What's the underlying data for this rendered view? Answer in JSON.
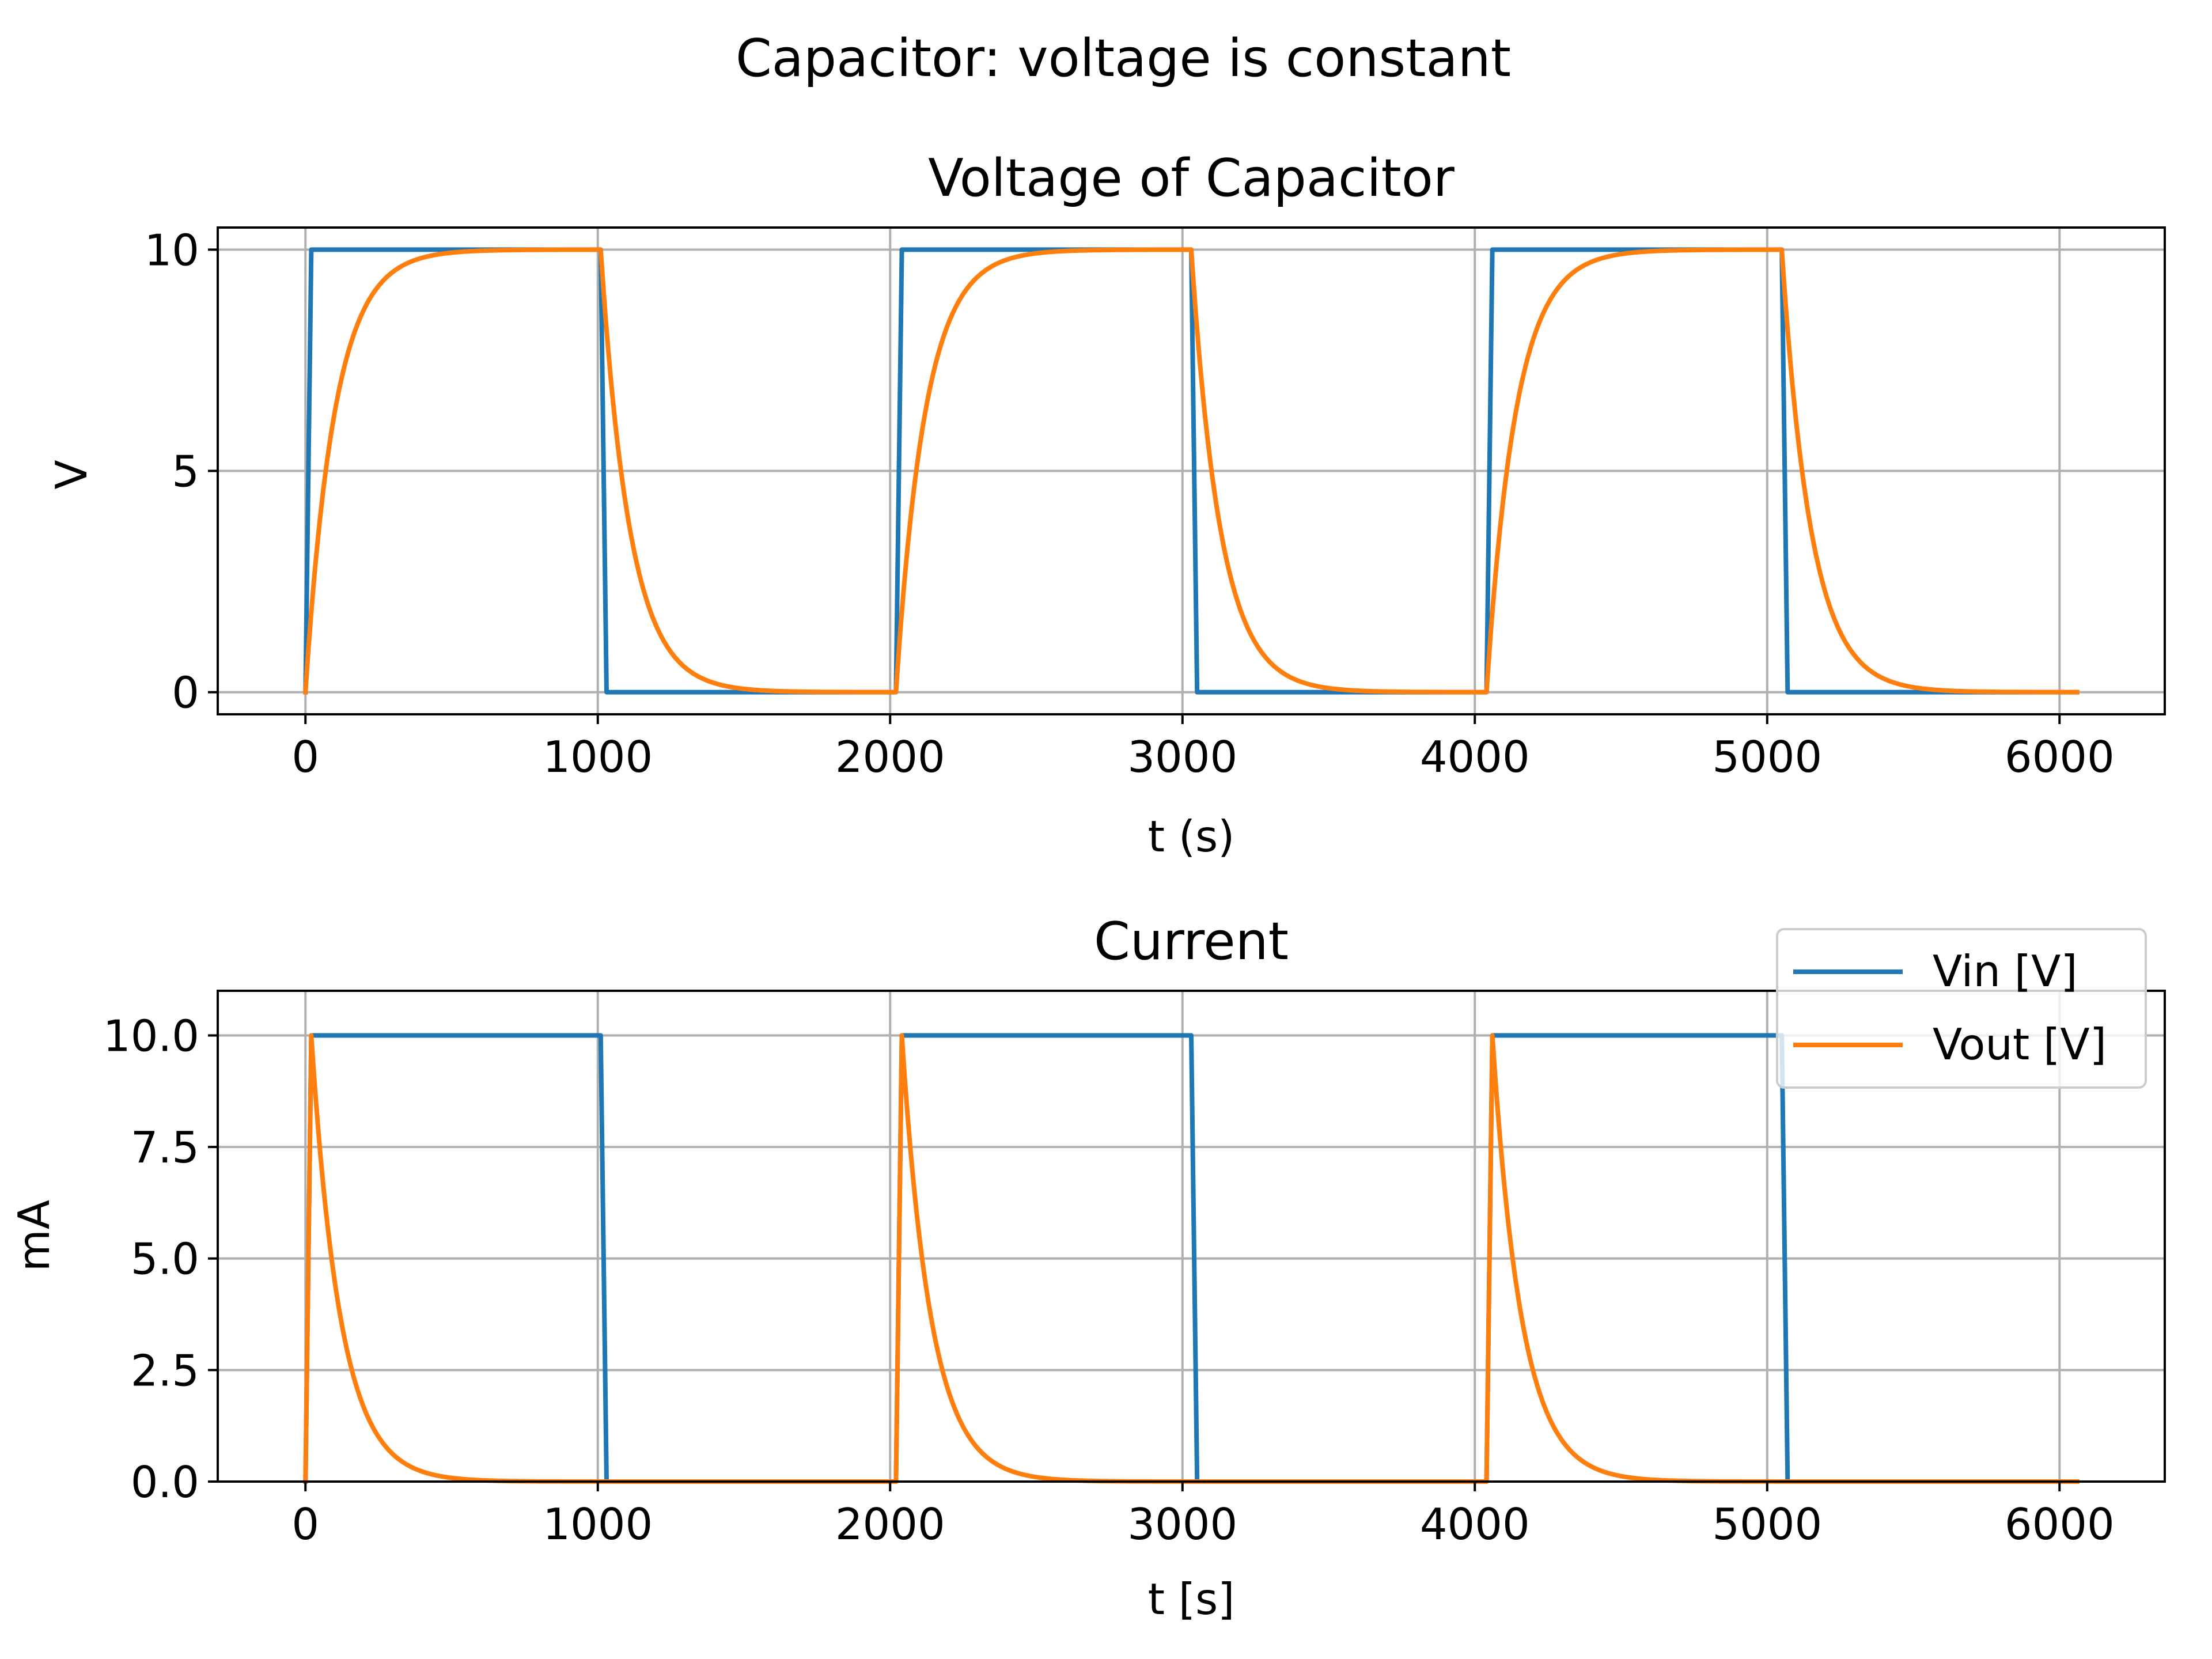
{
  "figure": {
    "title": "Capacitor: voltage is constant"
  },
  "colors": {
    "vin": "#1f77b4",
    "vout": "#ff7f0e",
    "grid": "#b0b0b0",
    "axes": "#000000",
    "background": "#ffffff"
  },
  "chart_data": [
    {
      "type": "line",
      "title": "Voltage of Capacitor",
      "xlabel": "t (s)",
      "ylabel": "V",
      "xlim": [
        -300,
        6360
      ],
      "ylim": [
        -0.5,
        10.5
      ],
      "xticks": [
        0,
        1000,
        2000,
        3000,
        4000,
        5000,
        6000
      ],
      "xtick_labels": [
        "0",
        "1000",
        "2000",
        "3000",
        "4000",
        "5000",
        "6000"
      ],
      "yticks": [
        0,
        5,
        10
      ],
      "ytick_labels": [
        "0",
        "5",
        "10"
      ],
      "grid": true,
      "series": [
        {
          "key": "vin",
          "model": "square",
          "points": [
            [
              0,
              0
            ],
            [
              20,
              10
            ],
            [
              1010,
              10
            ],
            [
              1030,
              0
            ],
            [
              2020,
              0
            ],
            [
              2040,
              10
            ],
            [
              3030,
              10
            ],
            [
              3050,
              0
            ],
            [
              4040,
              0
            ],
            [
              4060,
              10
            ],
            [
              5050,
              10
            ],
            [
              5070,
              0
            ],
            [
              6060,
              0
            ]
          ]
        },
        {
          "key": "vout",
          "model": "rc_voltage",
          "x_range": [
            0,
            6060
          ],
          "edges": [
            [
              0,
              "rise"
            ],
            [
              1010,
              "fall"
            ],
            [
              2020,
              "rise"
            ],
            [
              3030,
              "fall"
            ],
            [
              4040,
              "rise"
            ],
            [
              5050,
              "fall"
            ]
          ],
          "amplitude": 10,
          "tau": 100
        }
      ]
    },
    {
      "type": "line",
      "title": "Current",
      "xlabel": "t [s]",
      "ylabel": "mA",
      "xlim": [
        -300,
        6360
      ],
      "ylim": [
        0,
        11
      ],
      "xticks": [
        0,
        1000,
        2000,
        3000,
        4000,
        5000,
        6000
      ],
      "xtick_labels": [
        "0",
        "1000",
        "2000",
        "3000",
        "4000",
        "5000",
        "6000"
      ],
      "yticks": [
        0,
        2.5,
        5,
        7.5,
        10
      ],
      "ytick_labels": [
        "0.0",
        "2.5",
        "5.0",
        "7.5",
        "10.0"
      ],
      "grid": true,
      "legend": {
        "placement": "top-right",
        "entries": [
          {
            "key": "vin",
            "label": "Vin [V]"
          },
          {
            "key": "vout",
            "label": "Vout [V]"
          }
        ]
      },
      "series": [
        {
          "key": "vin",
          "model": "square",
          "points": [
            [
              0,
              0
            ],
            [
              20,
              10
            ],
            [
              1010,
              10
            ],
            [
              1030,
              0
            ],
            [
              2020,
              0
            ],
            [
              2040,
              10
            ],
            [
              3030,
              10
            ],
            [
              3050,
              0
            ],
            [
              4040,
              0
            ],
            [
              4060,
              10
            ],
            [
              5050,
              10
            ],
            [
              5070,
              0
            ],
            [
              6060,
              0
            ]
          ]
        },
        {
          "key": "vout",
          "model": "rc_current",
          "x_range": [
            0,
            6060
          ],
          "pulses": [
            0,
            2020,
            4040
          ],
          "peak": 10,
          "tau": 100
        }
      ]
    }
  ]
}
